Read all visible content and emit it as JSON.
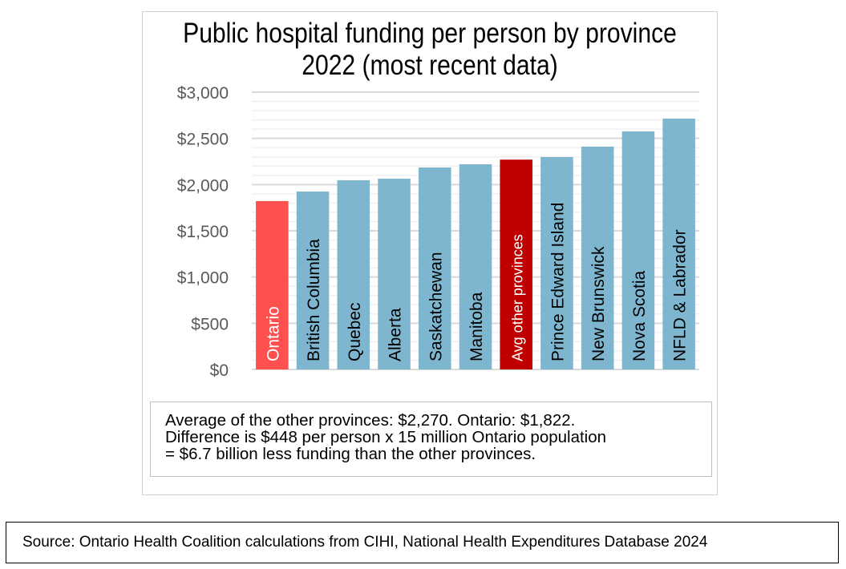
{
  "chart_data": {
    "type": "bar",
    "title": "Public hospital funding per person by province",
    "subtitle": "2022 (most recent data)",
    "xlabel": "",
    "ylabel": "",
    "ylim": [
      0,
      3000
    ],
    "yticks": [
      0,
      500,
      1000,
      1500,
      2000,
      2500,
      3000
    ],
    "ytick_labels": [
      "$0",
      "$500",
      "$1,000",
      "$1,500",
      "$2,000",
      "$2,500",
      "$3,000"
    ],
    "grid": true,
    "categories": [
      "Ontario",
      "British Columbia",
      "Quebec",
      "Alberta",
      "Saskatchewan",
      "Manitoba",
      "Avg other provinces",
      "Prince Edward Island",
      "New Brunswick",
      "Nova Scotia",
      "NFLD & Labrador"
    ],
    "values": [
      1822,
      1925,
      2047,
      2064,
      2185,
      2220,
      2270,
      2298,
      2411,
      2576,
      2714
    ],
    "colors": [
      "#ff5050",
      "#7eb6d0",
      "#7eb6d0",
      "#7eb6d0",
      "#7eb6d0",
      "#7eb6d0",
      "#c00000",
      "#7eb6d0",
      "#7eb6d0",
      "#7eb6d0",
      "#7eb6d0"
    ],
    "label_colors": [
      "#ffffff",
      "#000000",
      "#000000",
      "#000000",
      "#000000",
      "#000000",
      "#ffffff",
      "#000000",
      "#000000",
      "#000000",
      "#000000"
    ]
  },
  "note": {
    "line1": "Average of the other provinces: $2,270. Ontario: $1,822.",
    "line2": "Difference is $448 per person x 15 million Ontario population",
    "line3": "= $6.7 billion less funding than the other provinces."
  },
  "source": "Source: Ontario Health Coalition calculations from CIHI, National Health Expenditures Database 2024"
}
